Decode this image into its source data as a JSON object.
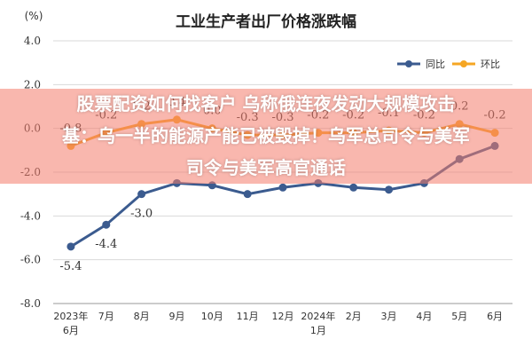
{
  "chart_data": {
    "type": "line",
    "title": "工业生产者出厂价格涨跌幅",
    "ylabel": "(%)",
    "ylim": [
      -8.0,
      4.0
    ],
    "yticks": [
      "4.0",
      "2.0",
      "0.0",
      "-2.0",
      "-4.0",
      "-6.0",
      "-8.0"
    ],
    "categories": [
      "2023年\n6月",
      "7月",
      "8月",
      "9月",
      "10月",
      "11月",
      "12月",
      "2024年\n1月",
      "2月",
      "3月",
      "4月",
      "5月",
      "6月"
    ],
    "legend_position": "top-right",
    "grid": true,
    "series": [
      {
        "name": "同比",
        "color": "#3b5b8f",
        "values": [
          -5.4,
          -4.4,
          -3.0,
          -2.5,
          -2.6,
          -3.0,
          -2.7,
          -2.5,
          -2.7,
          -2.8,
          -2.5,
          -1.4,
          -0.8
        ],
        "labels": [
          "-5.4",
          "-4.4",
          "-3.0",
          "",
          "",
          "",
          "",
          "",
          "",
          "",
          "",
          "",
          ""
        ]
      },
      {
        "name": "环比",
        "color": "#f5a623",
        "values": [
          -0.8,
          -0.2,
          0.2,
          0.4,
          0.0,
          -0.3,
          -0.3,
          -0.2,
          -0.2,
          -0.1,
          -0.2,
          0.2,
          -0.2
        ],
        "labels": [
          "-0.8",
          "-0.2",
          "0.2",
          "0.4",
          "0.0",
          "-0.3",
          "-0.3",
          "-0.2",
          "-0.2",
          "-0.1",
          "-0.2",
          "0.2",
          "-0.2"
        ]
      }
    ]
  },
  "overlay": {
    "line1": "股票配资如何找客户 乌称俄连夜发动大规模攻击",
    "line2": "基：乌一半的能源产能已被毁掉！乌军总司令与美军",
    "line3": "司令与美军高官通话"
  }
}
